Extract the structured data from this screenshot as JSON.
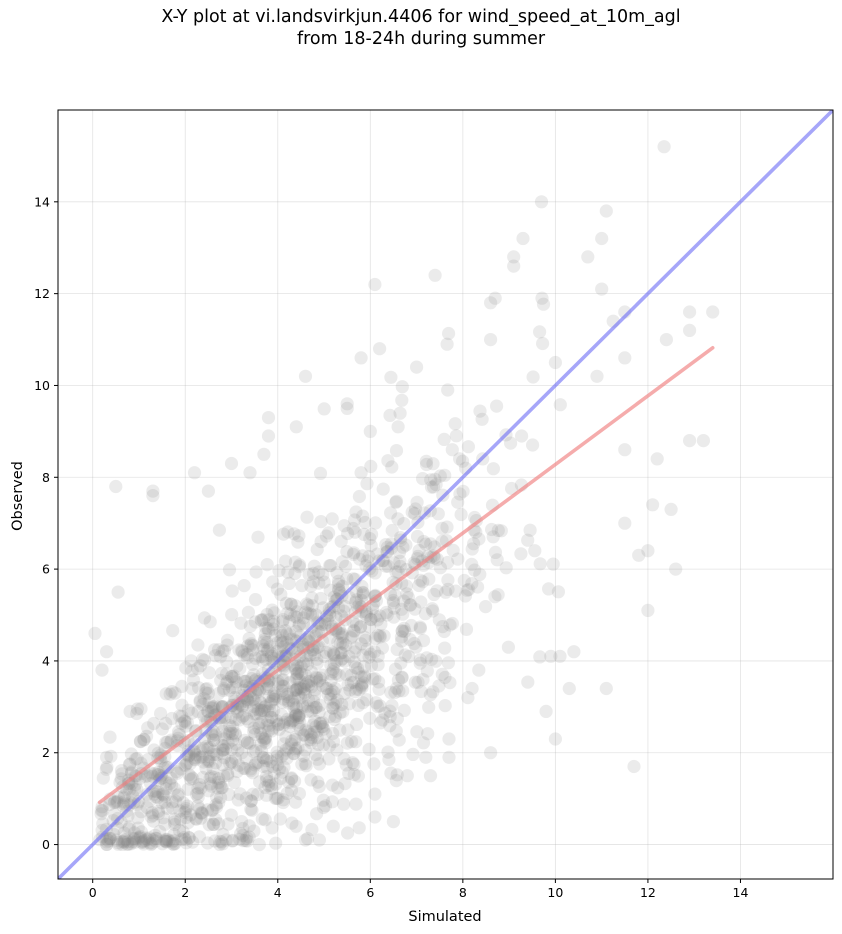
{
  "chart_data": {
    "type": "scatter",
    "title_line1": "X-Y plot at vi.landsvirkjun.4406 for wind_speed_at_10m_agl",
    "title_line2": "from 18-24h during summer",
    "xlabel": "Simulated",
    "ylabel": "Observed",
    "xlim": [
      -0.75,
      16.0
    ],
    "ylim": [
      -0.75,
      16.0
    ],
    "xticks": [
      0,
      2,
      4,
      6,
      8,
      10,
      12,
      14
    ],
    "yticks": [
      0,
      2,
      4,
      6,
      8,
      10,
      12,
      14
    ],
    "grid": true,
    "point_color": "#808080",
    "identity_line": {
      "points": [
        [
          -0.75,
          -0.75
        ],
        [
          16.0,
          16.0
        ]
      ],
      "color": "#6a6af5"
    },
    "regression_line": {
      "points": [
        [
          0.15,
          0.92
        ],
        [
          13.4,
          10.82
        ]
      ],
      "color": "#f08080"
    },
    "outliers": [
      [
        12.35,
        15.2
      ],
      [
        9.7,
        14.0
      ],
      [
        11.1,
        13.8
      ],
      [
        9.3,
        13.2
      ],
      [
        11.0,
        13.2
      ],
      [
        9.1,
        12.8
      ],
      [
        9.1,
        12.6
      ],
      [
        6.1,
        12.2
      ],
      [
        7.4,
        12.4
      ],
      [
        11.0,
        12.1
      ],
      [
        10.7,
        12.8
      ],
      [
        8.7,
        11.9
      ],
      [
        8.6,
        11.8
      ],
      [
        11.5,
        11.6
      ],
      [
        11.25,
        11.4
      ],
      [
        13.4,
        11.6
      ],
      [
        12.9,
        11.6
      ],
      [
        12.9,
        11.2
      ],
      [
        12.4,
        11.0
      ],
      [
        8.6,
        11.0
      ],
      [
        7.0,
        10.4
      ],
      [
        6.2,
        10.8
      ],
      [
        5.8,
        10.6
      ],
      [
        4.6,
        10.2
      ],
      [
        10.0,
        10.5
      ],
      [
        10.9,
        10.2
      ],
      [
        11.5,
        10.6
      ],
      [
        12.9,
        8.8
      ],
      [
        13.2,
        8.8
      ],
      [
        12.2,
        8.4
      ],
      [
        11.5,
        8.6
      ],
      [
        11.5,
        7.0
      ],
      [
        12.1,
        7.4
      ],
      [
        12.5,
        7.3
      ],
      [
        12.6,
        6.0
      ],
      [
        12.0,
        6.4
      ],
      [
        11.8,
        6.3
      ],
      [
        12.0,
        5.1
      ],
      [
        11.1,
        3.4
      ],
      [
        10.3,
        3.4
      ],
      [
        10.0,
        2.3
      ],
      [
        11.7,
        1.7
      ],
      [
        8.6,
        2.0
      ],
      [
        10.4,
        4.2
      ],
      [
        10.1,
        4.1
      ],
      [
        0.5,
        7.8
      ],
      [
        1.3,
        7.7
      ],
      [
        1.3,
        7.6
      ],
      [
        2.2,
        8.1
      ],
      [
        2.5,
        7.7
      ],
      [
        3.0,
        8.3
      ],
      [
        3.4,
        8.1
      ],
      [
        3.7,
        8.5
      ],
      [
        3.8,
        8.9
      ],
      [
        3.8,
        9.3
      ],
      [
        4.4,
        9.1
      ],
      [
        5.5,
        9.5
      ],
      [
        5.5,
        9.6
      ],
      [
        6.0,
        9.0
      ],
      [
        6.6,
        9.1
      ],
      [
        0.05,
        4.6
      ],
      [
        0.3,
        4.2
      ],
      [
        0.2,
        3.8
      ],
      [
        0.55,
        5.5
      ],
      [
        0.3,
        1.9
      ],
      [
        5.2,
        0.4
      ],
      [
        6.1,
        0.6
      ],
      [
        6.5,
        0.5
      ],
      [
        4.6,
        0.1
      ],
      [
        4.9,
        0.1
      ],
      [
        3.6,
        0.0
      ],
      [
        6.1,
        1.1
      ],
      [
        6.8,
        1.5
      ],
      [
        7.3,
        1.5
      ],
      [
        7.7,
        2.3
      ],
      [
        7.7,
        1.9
      ],
      [
        7.2,
        1.9
      ],
      [
        8.2,
        3.4
      ],
      [
        9.8,
        2.9
      ],
      [
        9.9,
        4.1
      ]
    ]
  }
}
